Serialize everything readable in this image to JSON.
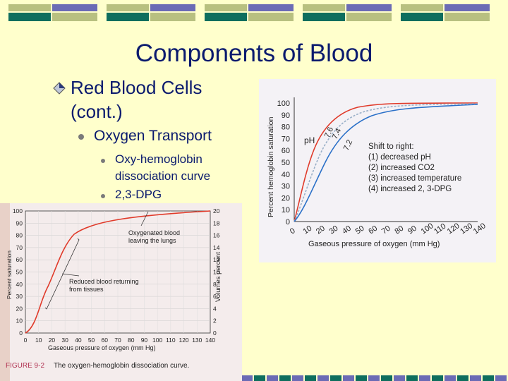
{
  "slide": {
    "title": "Components of Blood",
    "bullet1": {
      "line1": "Red Blood Cells",
      "line2": "(cont.)"
    },
    "bullet2": "Oxygen Transport",
    "bullet3": {
      "line1": "Oxy-hemoglobin",
      "line2": "dissociation curve"
    },
    "bullet4": "2,3-DPG"
  },
  "colors": {
    "title": "#0a1a6e",
    "background": "#ffffcc",
    "deco_green": "#0e6e5e",
    "deco_purple": "#6b6bb5",
    "deco_olive": "#b8c080"
  },
  "figure_left": {
    "y_ticks_left": [
      "100",
      "90",
      "80",
      "70",
      "60",
      "50",
      "40",
      "30",
      "20",
      "10",
      "0"
    ],
    "y_ticks_right": [
      "20",
      "18",
      "16",
      "14",
      "12",
      "10",
      "8",
      "6",
      "4",
      "2",
      "0"
    ],
    "x_ticks": [
      "0",
      "10",
      "20",
      "30",
      "40",
      "50",
      "60",
      "70",
      "80",
      "90",
      "100",
      "110",
      "120",
      "130",
      "140"
    ],
    "ylabel_left": "Percent saturation",
    "ylabel_right": "Volumes percent",
    "xlabel": "Gaseous pressure of oxygen (mm Hg)",
    "annot_oxy_1": "Oxygenated blood",
    "annot_oxy_2": "leaving the lungs",
    "annot_red_1": "Reduced blood returning",
    "annot_red_2": "from tissues",
    "caption_label": "FIGURE 9-2",
    "caption_text": "The oxygen-hemoglobin dissociation curve."
  },
  "figure_right": {
    "y_ticks": [
      "100",
      "90",
      "80",
      "70",
      "60",
      "50",
      "40",
      "30",
      "20",
      "10",
      "0"
    ],
    "x_ticks": [
      "0",
      "10",
      "20",
      "30",
      "40",
      "50",
      "60",
      "70",
      "80",
      "90",
      "100",
      "110",
      "120",
      "130",
      "140"
    ],
    "ylabel": "Percent hemoglobin saturation",
    "xlabel": "Gaseous pressure of oxygen (mm Hg)",
    "ph_label": "pH",
    "ph_values": [
      "7.6",
      "7.4",
      "7.2"
    ],
    "shift_title": "Shift to right:",
    "shift_items": [
      "(1) decreased pH",
      "(2) increased CO2",
      "(3) increased temperature",
      "(4) increased 2, 3-DPG"
    ]
  }
}
